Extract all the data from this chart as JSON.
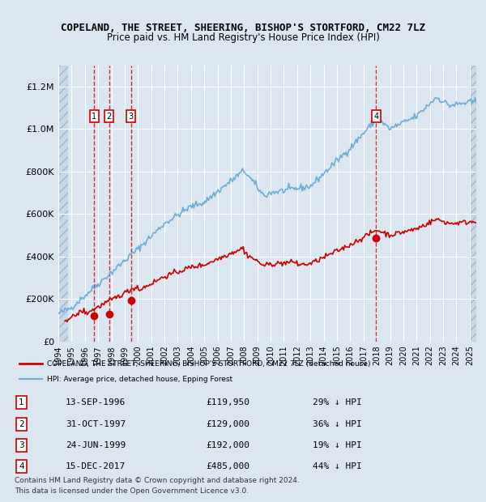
{
  "title": "COPELAND, THE STREET, SHEERING, BISHOP'S STORTFORD, CM22 7LZ",
  "subtitle": "Price paid vs. HM Land Registry's House Price Index (HPI)",
  "ylabel": "",
  "background_color": "#dce6f1",
  "plot_bg_color": "#dce6f1",
  "hatch_color": "#c0cedf",
  "grid_color": "#ffffff",
  "hpi_color": "#6baed6",
  "price_color": "#cc0000",
  "sale_points": [
    {
      "label": "1",
      "date_num": 1996.7,
      "price": 119950
    },
    {
      "label": "2",
      "date_num": 1997.83,
      "price": 129000
    },
    {
      "label": "3",
      "date_num": 1999.48,
      "price": 192000
    },
    {
      "label": "4",
      "date_num": 2017.96,
      "price": 485000
    }
  ],
  "sale_annotations": [
    {
      "num": "1",
      "date": "13-SEP-1996",
      "price": "£119,950",
      "hpi": "29% ↓ HPI"
    },
    {
      "num": "2",
      "date": "31-OCT-1997",
      "price": "£129,000",
      "hpi": "36% ↓ HPI"
    },
    {
      "num": "3",
      "date": "24-JUN-1999",
      "price": "£192,000",
      "hpi": "19% ↓ HPI"
    },
    {
      "num": "4",
      "date": "15-DEC-2017",
      "price": "£485,000",
      "hpi": "44% ↓ HPI"
    }
  ],
  "legend_line1": "COPELAND, THE STREET, SHEERING, BISHOP'S STORTFORD, CM22 7LZ (detached house)",
  "legend_line2": "HPI: Average price, detached house, Epping Forest",
  "footer1": "Contains HM Land Registry data © Crown copyright and database right 2024.",
  "footer2": "This data is licensed under the Open Government Licence v3.0.",
  "xmin": 1994.0,
  "xmax": 2025.5,
  "ymin": 0,
  "ymax": 1300000
}
